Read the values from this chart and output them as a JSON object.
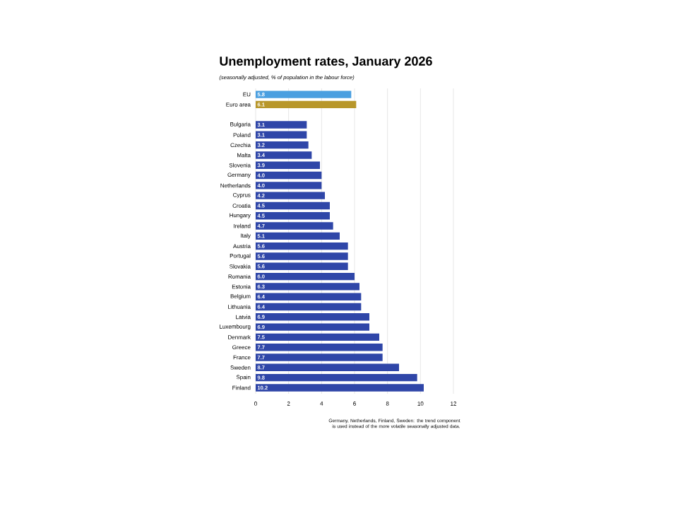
{
  "chart_data": {
    "type": "bar",
    "orientation": "horizontal",
    "title": "Unemployment rates, January 2026",
    "subtitle": "(seasonally adjusted, % of population in the labour force)",
    "categories": [
      "EU",
      "Euro area",
      null,
      "Bulgaria",
      "Poland",
      "Czechia",
      "Malta",
      "Slovenia",
      "Germany",
      "Netherlands",
      "Cyprus",
      "Croatia",
      "Hungary",
      "Ireland",
      "Italy",
      "Austria",
      "Portugal",
      "Slovakia",
      "Romania",
      "Estonia",
      "Belgium",
      "Lithuania",
      "Latvia",
      "Luxembourg",
      "Denmark",
      "Greece",
      "France",
      "Sweden",
      "Spain",
      "Finland"
    ],
    "values": [
      5.8,
      6.1,
      null,
      3.1,
      3.1,
      3.2,
      3.4,
      3.9,
      4.0,
      4.0,
      4.2,
      4.5,
      4.5,
      4.7,
      5.1,
      5.6,
      5.6,
      5.6,
      6.0,
      6.3,
      6.4,
      6.4,
      6.9,
      6.9,
      7.5,
      7.7,
      7.7,
      8.7,
      9.8,
      10.2
    ],
    "value_labels": [
      "5.8",
      "6.1",
      null,
      "3.1",
      "3.1",
      "3.2",
      "3.4",
      "3.9",
      "4.0",
      "4.0",
      "4.2",
      "4.5",
      "4.5",
      "4.7",
      "5.1",
      "5.6",
      "5.6",
      "5.6",
      "6.0",
      "6.3",
      "6.4",
      "6.4",
      "6.9",
      "6.9",
      "7.5",
      "7.7",
      "7.7",
      "8.7",
      "9.8",
      "10.2"
    ],
    "colors": [
      "#4a9fe0",
      "#b8972a",
      null,
      "#2f46a8",
      "#2f46a8",
      "#2f46a8",
      "#2f46a8",
      "#2f46a8",
      "#2f46a8",
      "#2f46a8",
      "#2f46a8",
      "#2f46a8",
      "#2f46a8",
      "#2f46a8",
      "#2f46a8",
      "#2f46a8",
      "#2f46a8",
      "#2f46a8",
      "#2f46a8",
      "#2f46a8",
      "#2f46a8",
      "#2f46a8",
      "#2f46a8",
      "#2f46a8",
      "#2f46a8",
      "#2f46a8",
      "#2f46a8",
      "#2f46a8",
      "#2f46a8",
      "#2f46a8"
    ],
    "xlim": [
      0,
      12
    ],
    "xticks": [
      0,
      2,
      4,
      6,
      8,
      10,
      12
    ],
    "grid": "x",
    "annotations": [
      "Germany, Netherlands, Finland, Sweden: the trend component is used instead of the more volatile seasonally adjusted data."
    ]
  }
}
